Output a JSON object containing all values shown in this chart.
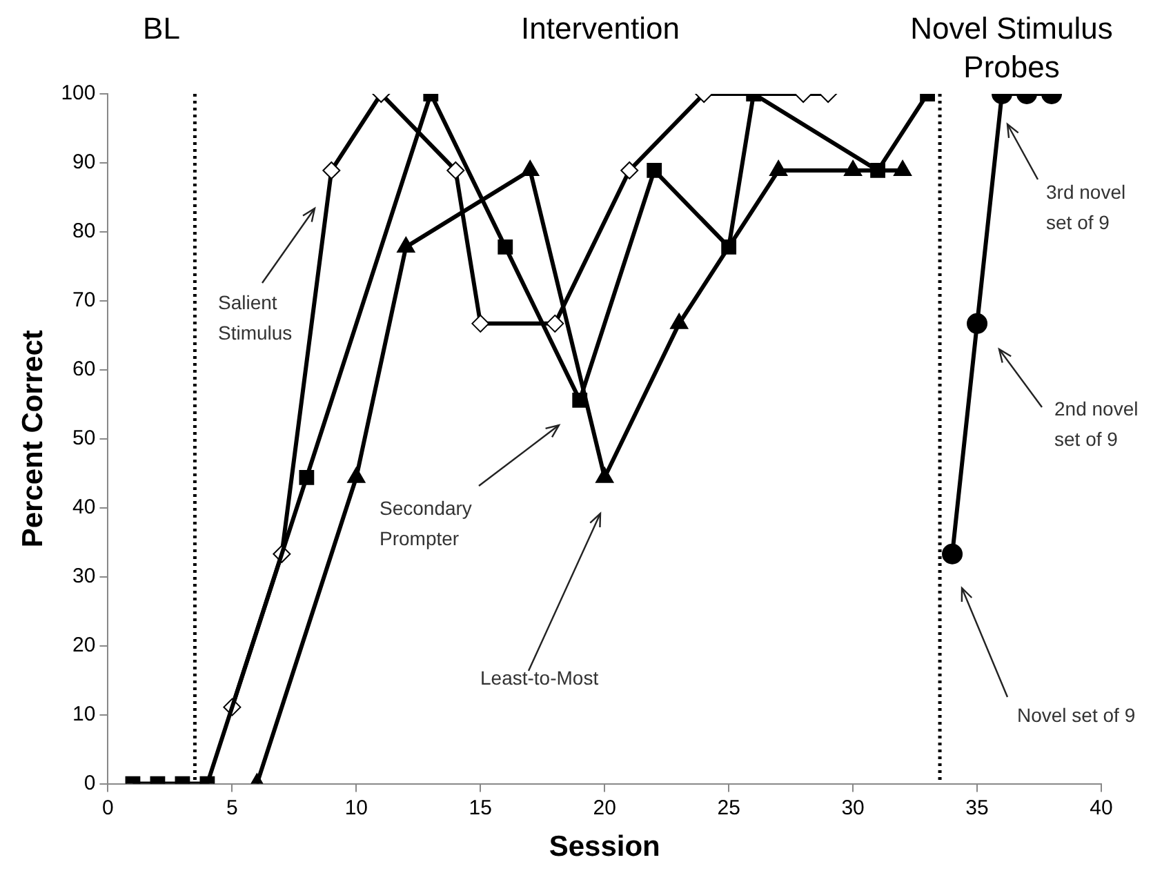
{
  "chart_data": {
    "type": "line",
    "xlabel": "Session",
    "ylabel": "Percent Correct",
    "xlim": [
      0,
      40
    ],
    "xticks": [
      0,
      5,
      10,
      15,
      20,
      25,
      30,
      35,
      40
    ],
    "ylim": [
      0,
      100
    ],
    "yticks": [
      0,
      10,
      20,
      30,
      40,
      50,
      60,
      70,
      80,
      90,
      100
    ],
    "grid": false,
    "legend": false,
    "line_style": "solid",
    "series": [
      {
        "color": "#000000",
        "marker": "square",
        "x": [
          1,
          2,
          3,
          4,
          8,
          13,
          16,
          19,
          22,
          25,
          26,
          31,
          33
        ],
        "values": [
          0,
          0,
          0,
          0,
          44.4,
          100,
          77.8,
          55.6,
          88.9,
          77.8,
          100,
          88.9,
          100
        ]
      },
      {
        "color": "#000000",
        "marker": "diamond",
        "x": [
          5,
          7,
          9,
          11,
          14,
          15,
          18,
          21,
          24,
          28,
          29
        ],
        "values": [
          11.1,
          33.3,
          88.9,
          100,
          88.9,
          66.7,
          66.7,
          88.9,
          100,
          100,
          100
        ]
      },
      {
        "color": "#000000",
        "marker": "triangle",
        "x": [
          6,
          10,
          12,
          17,
          20,
          23,
          27,
          30,
          32
        ],
        "values": [
          0,
          44.4,
          77.8,
          88.9,
          44.4,
          66.7,
          88.9,
          88.9,
          88.9
        ]
      },
      {
        "color": "#000000",
        "marker": "circle",
        "x": [
          34,
          35,
          36,
          37,
          38
        ],
        "values": [
          33.3,
          66.7,
          100,
          100,
          100
        ]
      }
    ],
    "ref_lines": [
      {
        "axis": "x",
        "value": 3.5,
        "line_style": "dotted",
        "color": "#000000"
      },
      {
        "axis": "x",
        "value": 33.5,
        "line_style": "dotted",
        "color": "#000000"
      }
    ],
    "annotations": [
      "BL",
      "Intervention",
      "Novel Stimulus Probes",
      "Salient Stimulus",
      "Secondary Prompter",
      "Least-to-Most",
      "Novel set of 9",
      "2nd novel set of 9",
      "3rd novel set of 9"
    ]
  }
}
